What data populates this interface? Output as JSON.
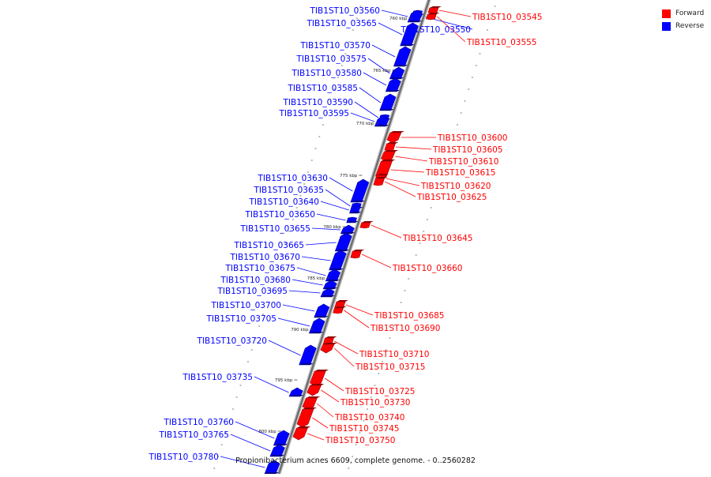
{
  "legend": {
    "forward_label": "Forward",
    "reverse_label": "Reverse",
    "forward_color": "#ff0000",
    "reverse_color": "#0000ff"
  },
  "caption": "Propionibacterium acnes 6609, complete genome. - 0..2560282",
  "ticks": [
    "760 kbp",
    "765 kbp",
    "770 kbp",
    "775 kbp",
    "780 kbp",
    "785 kbp",
    "790 kbp",
    "795 kbp",
    "800 kbp"
  ],
  "genes": [
    {
      "name": "TIB1ST10_03545",
      "strand": "forward"
    },
    {
      "name": "TIB1ST10_03550",
      "strand": "reverse"
    },
    {
      "name": "TIB1ST10_03555",
      "strand": "forward"
    },
    {
      "name": "TIB1ST10_03560",
      "strand": "reverse"
    },
    {
      "name": "TIB1ST10_03565",
      "strand": "reverse"
    },
    {
      "name": "TIB1ST10_03570",
      "strand": "reverse"
    },
    {
      "name": "TIB1ST10_03575",
      "strand": "reverse"
    },
    {
      "name": "TIB1ST10_03580",
      "strand": "reverse"
    },
    {
      "name": "TIB1ST10_03585",
      "strand": "reverse"
    },
    {
      "name": "TIB1ST10_03590",
      "strand": "reverse"
    },
    {
      "name": "TIB1ST10_03595",
      "strand": "reverse"
    },
    {
      "name": "TIB1ST10_03600",
      "strand": "forward"
    },
    {
      "name": "TIB1ST10_03605",
      "strand": "forward"
    },
    {
      "name": "TIB1ST10_03610",
      "strand": "forward"
    },
    {
      "name": "TIB1ST10_03615",
      "strand": "forward"
    },
    {
      "name": "TIB1ST10_03620",
      "strand": "forward"
    },
    {
      "name": "TIB1ST10_03625",
      "strand": "forward"
    },
    {
      "name": "TIB1ST10_03630",
      "strand": "reverse"
    },
    {
      "name": "TIB1ST10_03635",
      "strand": "reverse"
    },
    {
      "name": "TIB1ST10_03640",
      "strand": "reverse"
    },
    {
      "name": "TIB1ST10_03645",
      "strand": "forward"
    },
    {
      "name": "TIB1ST10_03650",
      "strand": "reverse"
    },
    {
      "name": "TIB1ST10_03655",
      "strand": "reverse"
    },
    {
      "name": "TIB1ST10_03660",
      "strand": "forward"
    },
    {
      "name": "TIB1ST10_03665",
      "strand": "reverse"
    },
    {
      "name": "TIB1ST10_03670",
      "strand": "reverse"
    },
    {
      "name": "TIB1ST10_03675",
      "strand": "reverse"
    },
    {
      "name": "TIB1ST10_03680",
      "strand": "reverse"
    },
    {
      "name": "TIB1ST10_03685",
      "strand": "forward"
    },
    {
      "name": "TIB1ST10_03690",
      "strand": "forward"
    },
    {
      "name": "TIB1ST10_03695",
      "strand": "reverse"
    },
    {
      "name": "TIB1ST10_03700",
      "strand": "reverse"
    },
    {
      "name": "TIB1ST10_03705",
      "strand": "reverse"
    },
    {
      "name": "TIB1ST10_03710",
      "strand": "forward"
    },
    {
      "name": "TIB1ST10_03715",
      "strand": "forward"
    },
    {
      "name": "TIB1ST10_03720",
      "strand": "reverse"
    },
    {
      "name": "TIB1ST10_03725",
      "strand": "forward"
    },
    {
      "name": "TIB1ST10_03730",
      "strand": "forward"
    },
    {
      "name": "TIB1ST10_03735",
      "strand": "reverse"
    },
    {
      "name": "TIB1ST10_03740",
      "strand": "forward"
    },
    {
      "name": "TIB1ST10_03745",
      "strand": "forward"
    },
    {
      "name": "TIB1ST10_03750",
      "strand": "forward"
    },
    {
      "name": "TIB1ST10_03760",
      "strand": "reverse"
    },
    {
      "name": "TIB1ST10_03765",
      "strand": "reverse"
    },
    {
      "name": "TIB1ST10_03780",
      "strand": "reverse"
    }
  ]
}
